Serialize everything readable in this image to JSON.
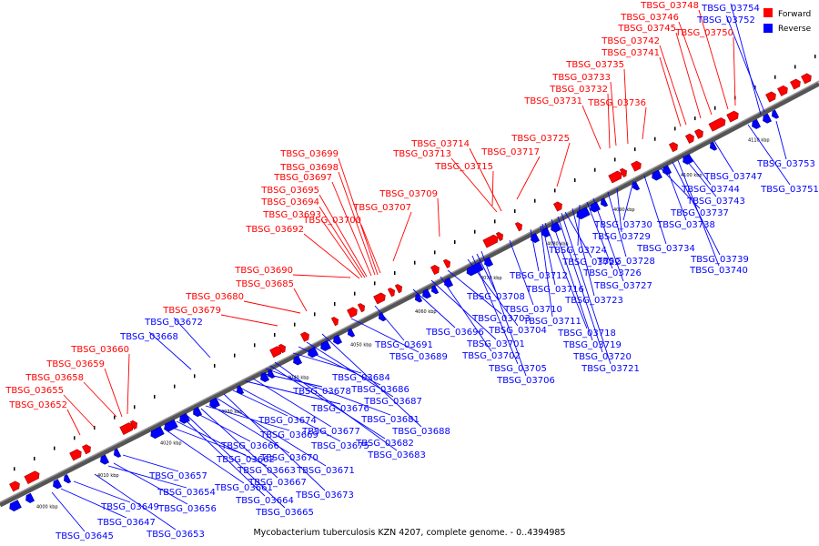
{
  "caption": "Mycobacterium tuberculosis KZN 4207, complete genome. - 0..4394985",
  "legend": {
    "forward": {
      "label": "Forward",
      "color": "#ff0000"
    },
    "reverse": {
      "label": "Reverse",
      "color": "#0000ff"
    }
  },
  "axis_ticks": [
    "4000 kbp",
    "4010 kbp",
    "4020 kbp",
    "4030 kbp",
    "4040 kbp",
    "4050 kbp",
    "4060 kbp",
    "4070 kbp",
    "4080 kbp",
    "4090 kbp",
    "4100 kbp",
    "4110 kbp"
  ],
  "forward_genes": [
    "TBSG_03652",
    "TBSG_03655",
    "TBSG_03658",
    "TBSG_03659",
    "TBSG_03660",
    "TBSG_03679",
    "TBSG_03680",
    "TBSG_03685",
    "TBSG_03690",
    "TBSG_03692",
    "TBSG_03693",
    "TBSG_03694",
    "TBSG_03695",
    "TBSG_03697",
    "TBSG_03698",
    "TBSG_03699",
    "TBSG_03700",
    "TBSG_03707",
    "TBSG_03709",
    "TBSG_03713",
    "TBSG_03714",
    "TBSG_03715",
    "TBSG_03717",
    "TBSG_03725",
    "TBSG_03731",
    "TBSG_03732",
    "TBSG_03733",
    "TBSG_03735",
    "TBSG_03736",
    "TBSG_03741",
    "TBSG_03742",
    "TBSG_03745",
    "TBSG_03746",
    "TBSG_03748",
    "TBSG_03750"
  ],
  "reverse_genes": [
    "TBSG_03645",
    "TBSG_03647",
    "TBSG_03649",
    "TBSG_03653",
    "TBSG_03654",
    "TBSG_03656",
    "TBSG_03657",
    "TBSG_03661",
    "TBSG_03662",
    "TBSG_03663",
    "TBSG_03664",
    "TBSG_03665",
    "TBSG_03666",
    "TBSG_03667",
    "TBSG_03668",
    "TBSG_03669",
    "TBSG_03670",
    "TBSG_03671",
    "TBSG_03672",
    "TBSG_03673",
    "TBSG_03674",
    "TBSG_03675",
    "TBSG_03676",
    "TBSG_03677",
    "TBSG_03678",
    "TBSG_03681",
    "TBSG_03682",
    "TBSG_03683",
    "TBSG_03684",
    "TBSG_03686",
    "TBSG_03687",
    "TBSG_03688",
    "TBSG_03689",
    "TBSG_03691",
    "TBSG_03696",
    "TBSG_03701",
    "TBSG_03702",
    "TBSG_03703",
    "TBSG_03704",
    "TBSG_03705",
    "TBSG_03706",
    "TBSG_03708",
    "TBSG_03710",
    "TBSG_03711",
    "TBSG_03712",
    "TBSG_03716",
    "TBSG_03718",
    "TBSG_03719",
    "TBSG_03720",
    "TBSG_03721",
    "TBSG_03722",
    "TBSG_03723",
    "TBSG_03724",
    "TBSG_03726",
    "TBSG_03727",
    "TBSG_03728",
    "TBSG_03729",
    "TBSG_03730",
    "TBSG_03734",
    "TBSG_03737",
    "TBSG_03738",
    "TBSG_03739",
    "TBSG_03740",
    "TBSG_03743",
    "TBSG_03744",
    "TBSG_03747",
    "TBSG_03751",
    "TBSG_03752",
    "TBSG_03753",
    "TBSG_03754"
  ]
}
